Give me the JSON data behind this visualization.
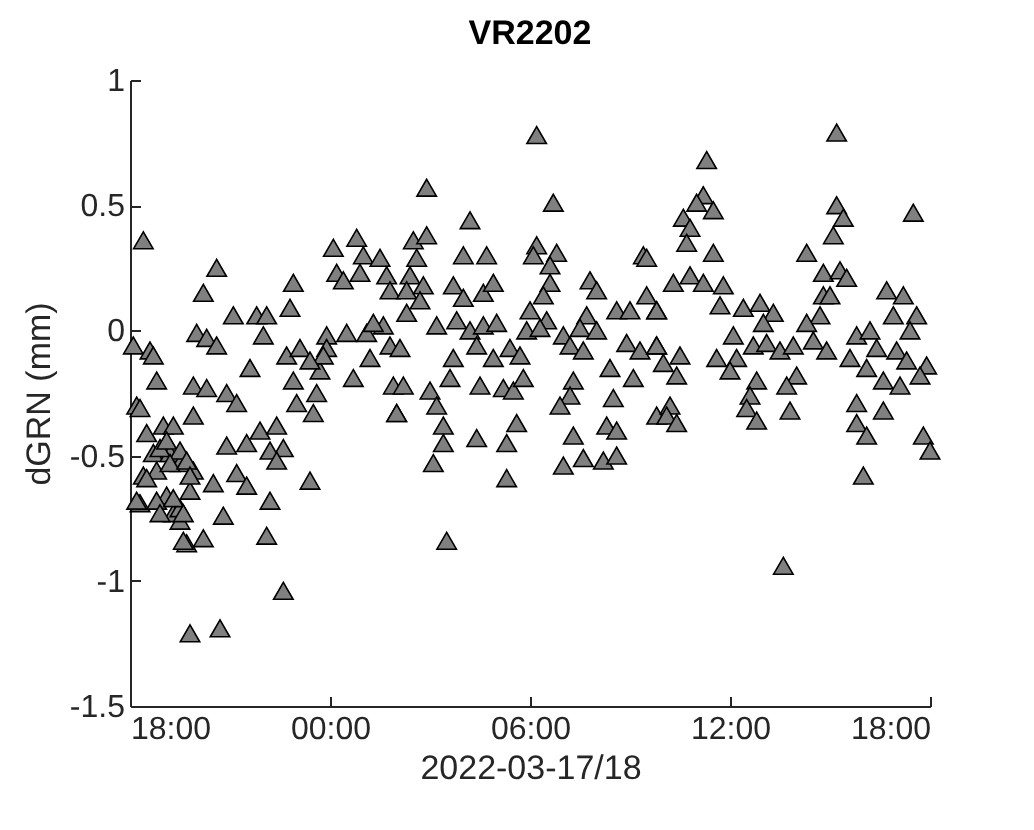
{
  "chart_data": {
    "type": "scatter",
    "title": "VR2202",
    "xlabel": "2022-03-17/18",
    "ylabel": "dGRN (mm)",
    "xlim": [
      "2022-03-17T18:00",
      "2022-03-18T18:00"
    ],
    "ylim": [
      -1.5,
      1
    ],
    "xticks": [
      {
        "value": "2022-03-17T18:00",
        "label": "18:00"
      },
      {
        "value": "2022-03-18T00:00",
        "label": "00:00"
      },
      {
        "value": "2022-03-18T06:00",
        "label": "06:00"
      },
      {
        "value": "2022-03-18T12:00",
        "label": "12:00"
      },
      {
        "value": "2022-03-18T18:00",
        "label": "18:00"
      }
    ],
    "yticks": [
      -1.5,
      -1,
      -0.5,
      0,
      0.5,
      1
    ],
    "grid": false,
    "marker": "triangle",
    "series": [
      {
        "color": "#808080",
        "x": [
          "2022-03-17T18:06",
          "2022-03-17T18:24",
          "2022-03-17T18:12",
          "2022-03-17T18:24",
          "2022-03-17T18:18",
          "2022-03-17T18:30",
          "2022-03-17T18:42",
          "2022-03-17T18:48",
          "2022-03-17T18:36",
          "2022-03-17T19:06",
          "2022-03-17T19:12",
          "2022-03-17T19:18",
          "2022-03-17T19:30",
          "2022-03-17T19:42",
          "2022-03-17T19:48",
          "2022-03-17T19:30",
          "2022-03-17T19:54",
          "2022-03-17T18:54",
          "2022-03-17T19:54",
          "2022-03-17T19:30",
          "2022-03-17T20:36",
          "2022-03-17T20:12",
          "2022-03-17T18:42",
          "2022-03-17T18:48",
          "2022-03-17T18:18",
          "2022-03-17T20:00",
          "2022-03-17T20:18",
          "2022-03-17T20:36",
          "2022-03-17T19:54",
          "2022-03-17T20:18",
          "2022-03-17T20:54",
          "2022-03-17T21:12",
          "2022-03-17T21:06",
          "2022-03-17T21:48",
          "2022-03-17T22:06",
          "2022-03-17T22:00",
          "2022-03-17T22:54",
          "2022-03-17T22:48",
          "2022-03-17T21:36",
          "2022-03-17T22:42",
          "2022-03-17T23:06",
          "2022-03-17T22:54",
          "2022-03-17T23:36",
          "2022-03-17T23:00",
          "2022-03-17T23:30",
          "2022-03-17T19:00",
          "2022-03-17T19:18",
          "2022-03-17T19:06",
          "2022-03-17T19:30",
          "2022-03-17T19:12",
          "2022-03-17T19:42",
          "2022-03-17T19:48",
          "2022-03-17T18:30",
          "2022-03-17T18:12",
          "2022-03-17T18:48",
          "2022-03-17T19:18",
          "2022-03-17T18:54",
          "2022-03-17T19:36",
          "2022-03-17T20:30",
          "2022-03-17T19:36",
          "2022-03-17T20:12",
          "2022-03-17T20:48",
          "2022-03-17T20:54",
          "2022-03-17T21:30",
          "2022-03-17T21:54",
          "2022-03-17T22:24",
          "2022-03-17T22:36",
          "2022-03-17T22:12",
          "2022-03-17T22:24",
          "2022-03-17T21:12",
          "2022-03-17T21:30",
          "2022-03-17T22:12",
          "2022-03-17T23:24",
          "2022-03-17T22:06",
          "2022-03-17T22:36",
          "2022-03-17T19:48",
          "2022-03-17T20:42",
          "2022-03-18T00:06",
          "2022-03-18T00:48",
          "2022-03-18T01:00",
          "2022-03-18T01:30",
          "2022-03-18T00:12",
          "2022-03-18T00:24",
          "2022-03-18T00:54",
          "2022-03-18T01:42",
          "2022-03-18T01:48",
          "2022-03-18T00:30",
          "2022-03-18T01:06",
          "2022-03-18T01:36",
          "2022-03-18T01:18",
          "2022-03-17T23:54",
          "2022-03-18T01:48",
          "2022-03-18T01:12",
          "2022-03-18T00:42",
          "2022-03-17T23:54",
          "2022-03-17T23:42",
          "2022-03-18T01:54",
          "2022-03-18T02:00",
          "2022-03-17T23:48",
          "2022-03-17T23:24",
          "2022-03-18T06:12",
          "2022-03-18T02:54",
          "2022-03-18T04:12",
          "2022-03-18T06:42",
          "2022-03-18T02:30",
          "2022-03-18T02:54",
          "2022-03-18T02:36",
          "2022-03-18T04:00",
          "2022-03-18T04:42",
          "2022-03-18T06:12",
          "2022-03-18T06:06",
          "2022-03-18T06:48",
          "2022-03-18T06:36",
          "2022-03-18T09:24",
          "2022-03-18T02:24",
          "2022-03-18T02:18",
          "2022-03-18T02:48",
          "2022-03-18T02:42",
          "2022-03-18T03:42",
          "2022-03-18T04:00",
          "2022-03-18T04:36",
          "2022-03-18T04:54",
          "2022-03-18T06:36",
          "2022-03-18T06:24",
          "2022-03-18T07:48",
          "2022-03-18T08:00",
          "2022-03-18T02:18",
          "2022-03-18T03:12",
          "2022-03-18T03:48",
          "2022-03-18T04:12",
          "2022-03-18T04:36",
          "2022-03-18T05:00",
          "2022-03-18T06:00",
          "2022-03-18T06:30",
          "2022-03-18T05:54",
          "2022-03-18T06:18",
          "2022-03-18T07:00",
          "2022-03-18T07:42",
          "2022-03-18T07:30",
          "2022-03-18T08:00",
          "2022-03-18T08:36",
          "2022-03-18T09:00",
          "2022-03-18T09:30",
          "2022-03-18T09:48",
          "2022-03-18T08:54",
          "2022-03-18T09:18",
          "2022-03-18T09:48",
          "2022-03-18T02:06",
          "2022-03-18T04:24",
          "2022-03-18T04:54",
          "2022-03-18T05:24",
          "2022-03-18T05:42",
          "2022-03-18T07:12",
          "2022-03-18T07:36",
          "2022-03-18T03:42",
          "2022-03-18T03:36",
          "2022-03-18T02:12",
          "2022-03-18T03:00",
          "2022-03-18T04:30",
          "2022-03-18T05:12",
          "2022-03-18T05:30",
          "2022-03-18T05:48",
          "2022-03-18T07:18",
          "2022-03-18T07:12",
          "2022-03-18T06:54",
          "2022-03-18T08:24",
          "2022-03-18T09:06",
          "2022-03-18T08:30",
          "2022-03-18T02:00",
          "2022-03-18T03:12",
          "2022-03-18T03:24",
          "2022-03-18T03:24",
          "2022-03-18T03:06",
          "2022-03-18T04:24",
          "2022-03-18T05:36",
          "2022-03-18T05:18",
          "2022-03-18T05:18",
          "2022-03-18T07:18",
          "2022-03-18T07:36",
          "2022-03-18T07:00",
          "2022-03-18T08:12",
          "2022-03-18T08:36",
          "2022-03-18T08:18",
          "2022-03-18T08:36",
          "2022-03-18T09:48",
          "2022-03-18T03:30",
          "2022-03-18T15:12",
          "2022-03-18T11:18",
          "2022-03-18T11:12",
          "2022-03-18T11:00",
          "2022-03-18T11:30",
          "2022-03-18T10:36",
          "2022-03-18T10:48",
          "2022-03-18T10:42",
          "2022-03-18T11:30",
          "2022-03-18T15:12",
          "2022-03-18T15:24",
          "2022-03-18T15:06",
          "2022-03-18T17:30",
          "2022-03-18T14:18",
          "2022-03-18T14:48",
          "2022-03-18T15:18",
          "2022-03-18T15:30",
          "2022-03-18T10:18",
          "2022-03-18T10:48",
          "2022-03-18T11:12",
          "2022-03-18T11:48",
          "2022-03-18T11:42",
          "2022-03-18T12:24",
          "2022-03-18T12:54",
          "2022-03-18T13:18",
          "2022-03-18T13:00",
          "2022-03-18T14:48",
          "2022-03-18T15:00",
          "2022-03-18T14:42",
          "2022-03-18T14:18",
          "2022-03-18T16:42",
          "2022-03-18T17:12",
          "2022-03-18T16:54",
          "2022-03-18T17:36",
          "2022-03-18T17:24",
          "2022-03-18T09:30",
          "2022-03-18T09:48",
          "2022-03-18T15:48",
          "2022-03-18T16:12",
          "2022-03-18T16:24",
          "2022-03-18T12:06",
          "2022-03-18T12:42",
          "2022-03-18T13:06",
          "2022-03-18T13:30",
          "2022-03-18T13:54",
          "2022-03-18T14:30",
          "2022-03-18T14:54",
          "2022-03-18T11:36",
          "2022-03-18T12:12",
          "2022-03-18T12:00",
          "2022-03-18T09:48",
          "2022-03-18T10:30",
          "2022-03-18T10:24",
          "2022-03-18T10:00",
          "2022-03-18T15:36",
          "2022-03-18T16:06",
          "2022-03-18T17:00",
          "2022-03-18T17:18",
          "2022-03-18T17:54",
          "2022-03-18T16:36",
          "2022-03-18T17:06",
          "2022-03-18T17:42",
          "2022-03-18T14:00",
          "2022-03-18T13:42",
          "2022-03-18T12:48",
          "2022-03-18T12:36",
          "2022-03-18T12:30",
          "2022-03-18T12:48",
          "2022-03-18T13:48",
          "2022-03-18T10:12",
          "2022-03-18T10:06",
          "2022-03-18T10:24",
          "2022-03-18T15:48",
          "2022-03-18T16:36",
          "2022-03-18T15:48",
          "2022-03-18T16:06",
          "2022-03-18T17:48",
          "2022-03-18T18:00",
          "2022-03-18T16:00",
          "2022-03-18T13:36"
        ],
        "values": [
          -0.06,
          0.36,
          -0.3,
          -0.58,
          -0.69,
          -0.41,
          -0.49,
          -0.56,
          -0.08,
          -0.66,
          -0.49,
          -0.73,
          -0.76,
          -0.85,
          -0.64,
          -0.53,
          -0.56,
          -0.47,
          -0.34,
          -0.71,
          0.25,
          0.15,
          -0.1,
          -0.2,
          -0.31,
          -0.01,
          -0.03,
          -0.06,
          -0.22,
          -0.23,
          -0.25,
          -0.29,
          0.06,
          0.06,
          0.06,
          -0.02,
          0.19,
          0.09,
          -0.15,
          -0.1,
          -0.07,
          -0.2,
          -0.25,
          -0.29,
          -0.33,
          -0.38,
          -0.38,
          -0.44,
          -0.48,
          -0.53,
          -0.52,
          -0.58,
          -0.59,
          -0.68,
          -0.68,
          -0.67,
          -0.73,
          -0.73,
          -0.61,
          -0.84,
          -0.83,
          -0.74,
          -0.46,
          -0.45,
          -0.4,
          -0.38,
          -0.47,
          -0.48,
          -0.52,
          -0.57,
          -0.62,
          -0.68,
          -0.6,
          -0.82,
          -1.04,
          -1.21,
          -1.19,
          0.33,
          0.37,
          0.3,
          0.29,
          0.23,
          0.2,
          0.23,
          0.22,
          0.16,
          -0.01,
          -0.01,
          0.02,
          0.03,
          -0.02,
          -0.06,
          -0.11,
          -0.19,
          -0.07,
          -0.16,
          -0.22,
          -0.33,
          -0.1,
          -0.12,
          0.78,
          0.57,
          0.44,
          0.51,
          0.36,
          0.38,
          0.29,
          0.3,
          0.3,
          0.34,
          0.3,
          0.31,
          0.26,
          0.3,
          0.22,
          0.16,
          0.18,
          0.12,
          0.18,
          0.13,
          0.15,
          0.19,
          0.19,
          0.14,
          0.2,
          0.16,
          0.07,
          0.02,
          0.04,
          0.0,
          0.02,
          0.03,
          0.08,
          0.04,
          0.0,
          0.01,
          -0.02,
          0.06,
          0.01,
          0.0,
          0.08,
          0.08,
          0.14,
          0.08,
          -0.05,
          -0.08,
          -0.06,
          -0.07,
          -0.06,
          -0.11,
          -0.07,
          -0.1,
          -0.06,
          -0.08,
          -0.11,
          -0.19,
          -0.22,
          -0.24,
          -0.22,
          -0.23,
          -0.24,
          -0.19,
          -0.2,
          -0.26,
          -0.3,
          -0.15,
          -0.19,
          -0.27,
          -0.33,
          -0.3,
          -0.38,
          -0.45,
          -0.53,
          -0.43,
          -0.37,
          -0.45,
          -0.59,
          -0.42,
          -0.51,
          -0.54,
          -0.52,
          -0.5,
          -0.38,
          -0.4,
          -0.34,
          -0.84,
          0.79,
          0.68,
          0.54,
          0.51,
          0.48,
          0.45,
          0.41,
          0.35,
          0.31,
          0.5,
          0.45,
          0.38,
          0.47,
          0.31,
          0.23,
          0.24,
          0.21,
          0.19,
          0.22,
          0.19,
          0.18,
          0.1,
          0.09,
          0.11,
          0.07,
          0.03,
          0.14,
          0.14,
          0.06,
          0.03,
          0.16,
          0.14,
          0.06,
          0.06,
          0.0,
          0.29,
          0.08,
          -0.02,
          0.0,
          -0.07,
          -0.02,
          -0.06,
          -0.05,
          -0.08,
          -0.06,
          -0.04,
          -0.08,
          -0.11,
          -0.11,
          -0.16,
          -0.06,
          -0.1,
          -0.18,
          -0.13,
          -0.11,
          -0.15,
          -0.08,
          -0.12,
          -0.14,
          -0.2,
          -0.22,
          -0.18,
          -0.18,
          -0.22,
          -0.2,
          -0.26,
          -0.31,
          -0.36,
          -0.32,
          -0.3,
          -0.34,
          -0.37,
          -0.29,
          -0.32,
          -0.37,
          -0.42,
          -0.42,
          -0.48,
          -0.58,
          -0.94
        ]
      }
    ]
  }
}
